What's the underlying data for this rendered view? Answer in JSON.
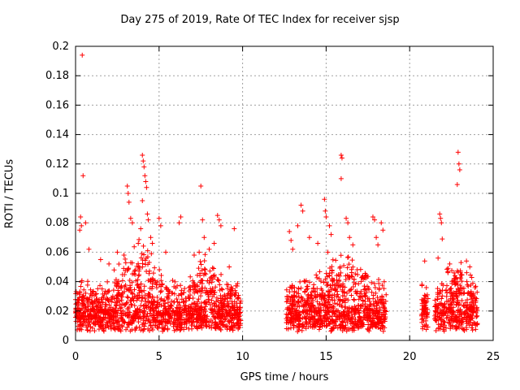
{
  "chart_data": {
    "type": "scatter",
    "title": "Day 275 of 2019, Rate Of TEC Index for receiver sjsp",
    "xlabel": "GPS time / hours",
    "ylabel": "ROTI / TECUs",
    "xlim": [
      0,
      25
    ],
    "ylim": [
      0,
      0.2
    ],
    "xticks": [
      0,
      5,
      10,
      15,
      20,
      25
    ],
    "xtick_labels": [
      "0",
      "5",
      "10",
      "15",
      "20",
      "25"
    ],
    "yticks": [
      0,
      0.02,
      0.04,
      0.06,
      0.08,
      0.1,
      0.12,
      0.14,
      0.16,
      0.18,
      0.2
    ],
    "ytick_labels": [
      "0",
      "0.02",
      "0.04",
      "0.06",
      "0.08",
      "0.1",
      "0.12",
      "0.14",
      "0.16",
      "0.18",
      "0.2"
    ],
    "grid": true,
    "marker": "+",
    "color": "#ff0000",
    "coverage_segments": [
      {
        "start": 0.0,
        "end": 9.9
      },
      {
        "start": 12.6,
        "end": 18.6
      },
      {
        "start": 20.7,
        "end": 21.1
      },
      {
        "start": 21.5,
        "end": 24.1
      }
    ],
    "series": [
      {
        "name": "ROTI",
        "points": [
          [
            0.4,
            0.194
          ],
          [
            0.45,
            0.112
          ],
          [
            0.3,
            0.084
          ],
          [
            0.35,
            0.078
          ],
          [
            0.25,
            0.075
          ],
          [
            0.6,
            0.08
          ],
          [
            0.8,
            0.062
          ],
          [
            1.5,
            0.055
          ],
          [
            2.0,
            0.052
          ],
          [
            2.5,
            0.06
          ],
          [
            2.9,
            0.058
          ],
          [
            3.1,
            0.105
          ],
          [
            3.15,
            0.1
          ],
          [
            3.2,
            0.094
          ],
          [
            3.3,
            0.083
          ],
          [
            3.4,
            0.08
          ],
          [
            4.0,
            0.126
          ],
          [
            4.05,
            0.122
          ],
          [
            4.1,
            0.118
          ],
          [
            4.15,
            0.112
          ],
          [
            4.2,
            0.108
          ],
          [
            4.25,
            0.104
          ],
          [
            4.0,
            0.095
          ],
          [
            4.3,
            0.086
          ],
          [
            4.35,
            0.082
          ],
          [
            3.9,
            0.076
          ],
          [
            4.5,
            0.07
          ],
          [
            4.6,
            0.066
          ],
          [
            5.0,
            0.083
          ],
          [
            5.1,
            0.078
          ],
          [
            5.4,
            0.06
          ],
          [
            6.3,
            0.084
          ],
          [
            6.2,
            0.08
          ],
          [
            7.5,
            0.105
          ],
          [
            7.6,
            0.082
          ],
          [
            7.7,
            0.07
          ],
          [
            7.4,
            0.06
          ],
          [
            7.1,
            0.058
          ],
          [
            8.5,
            0.085
          ],
          [
            8.6,
            0.082
          ],
          [
            8.7,
            0.078
          ],
          [
            8.3,
            0.066
          ],
          [
            8.0,
            0.062
          ],
          [
            9.5,
            0.076
          ],
          [
            9.2,
            0.05
          ],
          [
            12.8,
            0.074
          ],
          [
            12.9,
            0.068
          ],
          [
            13.0,
            0.062
          ],
          [
            13.5,
            0.092
          ],
          [
            13.6,
            0.088
          ],
          [
            13.3,
            0.078
          ],
          [
            14.0,
            0.07
          ],
          [
            14.5,
            0.066
          ],
          [
            14.9,
            0.096
          ],
          [
            14.95,
            0.088
          ],
          [
            15.0,
            0.084
          ],
          [
            15.2,
            0.078
          ],
          [
            15.3,
            0.072
          ],
          [
            15.1,
            0.06
          ],
          [
            15.9,
            0.126
          ],
          [
            15.95,
            0.124
          ],
          [
            15.9,
            0.11
          ],
          [
            16.2,
            0.083
          ],
          [
            16.3,
            0.08
          ],
          [
            16.4,
            0.07
          ],
          [
            16.6,
            0.065
          ],
          [
            17.8,
            0.084
          ],
          [
            17.9,
            0.082
          ],
          [
            18.0,
            0.07
          ],
          [
            18.3,
            0.08
          ],
          [
            18.4,
            0.075
          ],
          [
            18.1,
            0.065
          ],
          [
            20.9,
            0.054
          ],
          [
            21.8,
            0.086
          ],
          [
            21.85,
            0.083
          ],
          [
            21.9,
            0.08
          ],
          [
            21.95,
            0.069
          ],
          [
            21.7,
            0.056
          ],
          [
            22.9,
            0.128
          ],
          [
            22.95,
            0.12
          ],
          [
            23.0,
            0.116
          ],
          [
            22.85,
            0.106
          ],
          [
            23.4,
            0.054
          ],
          [
            22.4,
            0.052
          ],
          [
            22.3,
            0.049
          ],
          [
            23.6,
            0.05
          ]
        ]
      }
    ]
  }
}
